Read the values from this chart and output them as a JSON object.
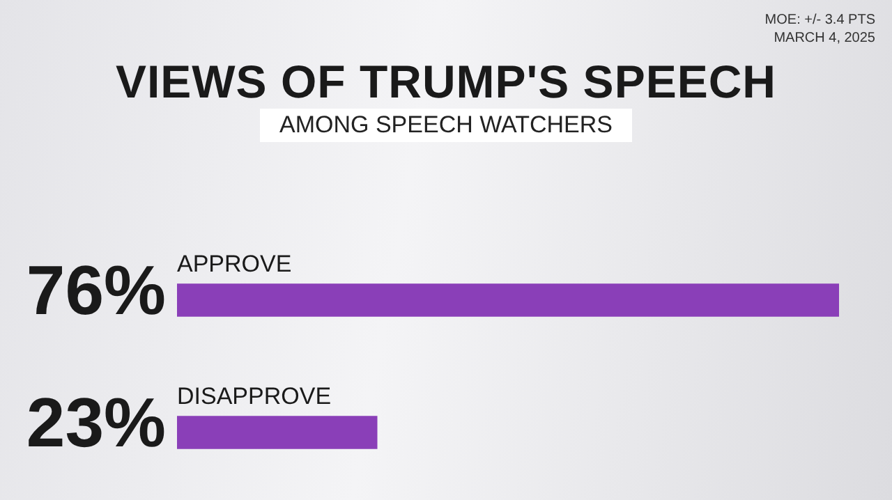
{
  "chart_data": {
    "type": "bar",
    "orientation": "horizontal",
    "title": "VIEWS OF TRUMP'S SPEECH",
    "subtitle": "AMONG SPEECH WATCHERS",
    "categories": [
      "APPROVE",
      "DISAPPROVE"
    ],
    "values": [
      76,
      23
    ],
    "value_labels": [
      "76%",
      "23%"
    ],
    "color": "#8a3fb8",
    "tick_labels": false,
    "legend": false,
    "annotations": [
      "MOE: +/- 3.4 PTS",
      "MARCH 4, 2025"
    ]
  }
}
